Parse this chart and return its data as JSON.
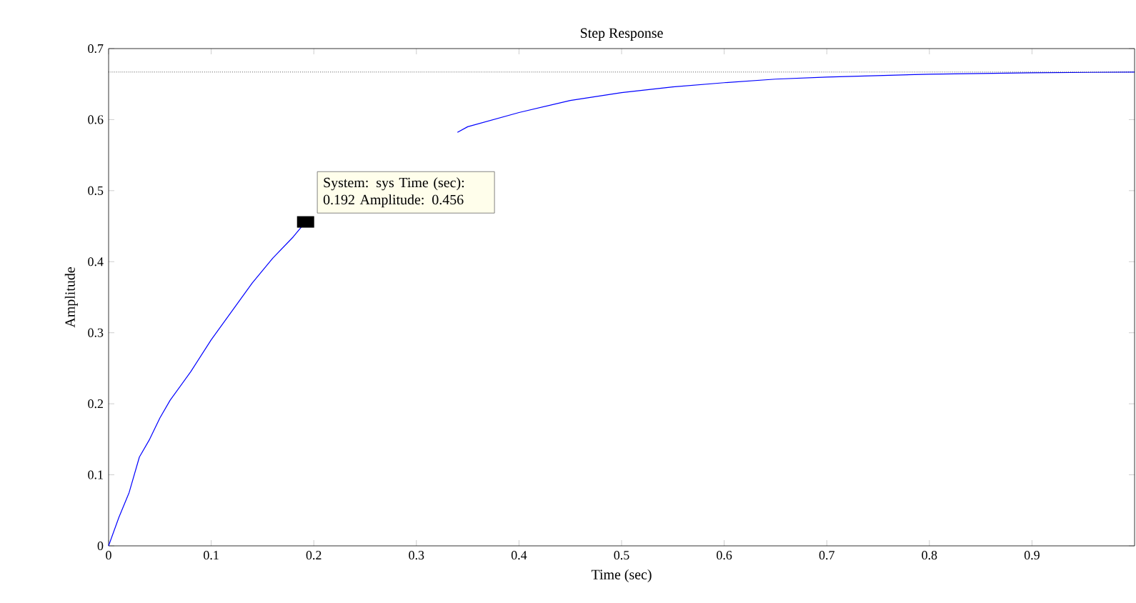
{
  "chart_data": {
    "type": "line",
    "title": "Step Response",
    "xlabel": "Time (sec)",
    "ylabel": "Amplitude",
    "x": [
      0,
      0.01,
      0.02,
      0.03,
      0.04,
      0.05,
      0.06,
      0.07,
      0.08,
      0.1,
      0.12,
      0.14,
      0.16,
      0.18,
      0.192,
      0.22,
      0.25,
      0.3,
      0.34,
      0.35,
      0.4,
      0.45,
      0.5,
      0.55,
      0.6,
      0.65,
      0.7,
      0.8,
      0.9,
      1.0
    ],
    "series": [
      {
        "color": "#0000ff",
        "values": [
          0,
          0.04,
          0.075,
          0.125,
          0.15,
          0.18,
          0.205,
          0.225,
          0.245,
          0.29,
          0.33,
          0.37,
          0.405,
          0.435,
          0.456,
          null,
          null,
          null,
          0.582,
          0.59,
          0.61,
          0.627,
          0.638,
          0.646,
          0.652,
          0.657,
          0.66,
          0.664,
          0.666,
          0.667
        ]
      }
    ],
    "xlim": [
      0,
      1
    ],
    "ylim": [
      0,
      0.7
    ],
    "xticks": [
      0,
      0.1,
      0.2,
      0.3,
      0.4,
      0.5,
      0.6,
      0.7,
      0.8,
      0.9
    ],
    "yticks": [
      0,
      0.1,
      0.2,
      0.3,
      0.4,
      0.5,
      0.6,
      0.7
    ],
    "ref_lines": [
      {
        "axis": "y",
        "value": 0.667,
        "color": "#000000",
        "line_style": "dotted"
      }
    ],
    "annotations": [
      {
        "text": "System: sys Time (sec): 0.192 Amplitude: 0.456",
        "x": 0.192,
        "y": 0.456
      }
    ],
    "grid": false,
    "marker": "none",
    "line_style": "solid"
  }
}
